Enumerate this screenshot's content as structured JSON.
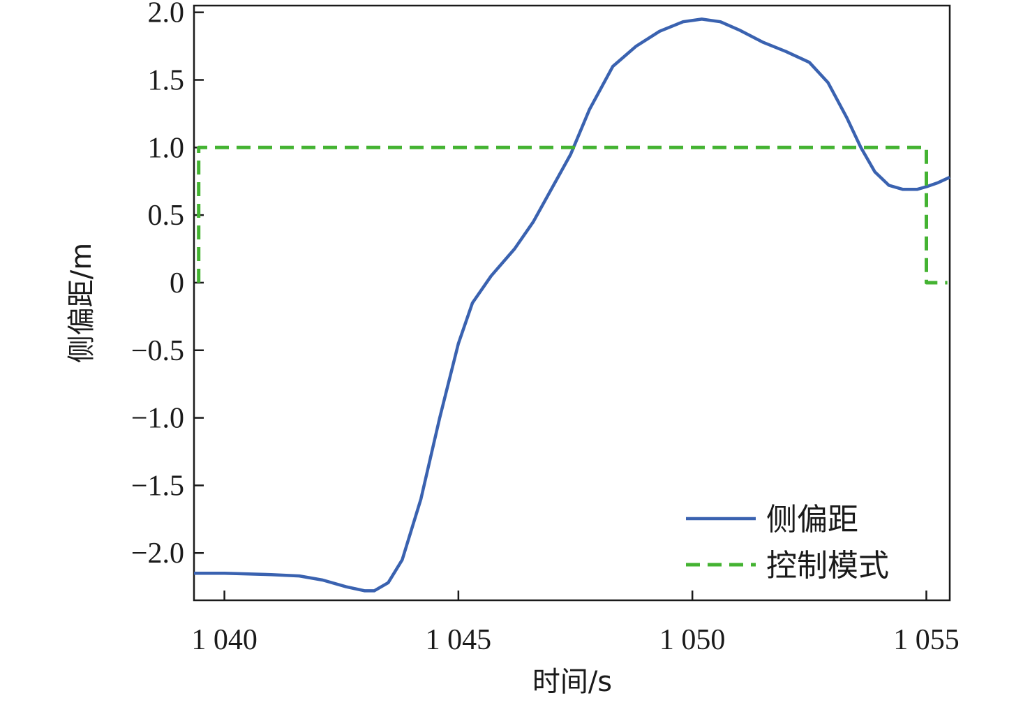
{
  "chart_data": {
    "type": "line",
    "title": "",
    "xlabel": "时间/s",
    "ylabel": "侧偏距/m",
    "xlim": [
      1039.35,
      1055.5
    ],
    "ylim": [
      -2.35,
      2.05
    ],
    "x_ticks": [
      1040,
      1045,
      1050,
      1055
    ],
    "x_tick_labels": [
      "1 040",
      "1 045",
      "1 050",
      "1 055"
    ],
    "y_ticks": [
      2.0,
      1.5,
      1.0,
      0.5,
      0,
      -0.5,
      -1.0,
      -1.5,
      -2.0
    ],
    "y_tick_labels": [
      "2.0",
      "1.5",
      "1.0",
      "0.5",
      "0",
      "−0.5",
      "−1.0",
      "−1.5",
      "−2.0"
    ],
    "grid": false,
    "legend_position": "bottom-right",
    "series": [
      {
        "name": "侧偏距",
        "style": "solid",
        "color": "#3a62b0",
        "x": [
          1039.35,
          1040.0,
          1041.0,
          1041.6,
          1042.1,
          1042.6,
          1043.0,
          1043.2,
          1043.5,
          1043.8,
          1044.2,
          1044.6,
          1045.0,
          1045.3,
          1045.7,
          1046.2,
          1046.6,
          1047.0,
          1047.4,
          1047.8,
          1048.3,
          1048.8,
          1049.3,
          1049.8,
          1050.2,
          1050.6,
          1051.0,
          1051.5,
          1052.0,
          1052.5,
          1052.9,
          1053.3,
          1053.6,
          1053.9,
          1054.2,
          1054.5,
          1054.8,
          1055.0,
          1055.25,
          1055.5
        ],
        "values": [
          -2.15,
          -2.15,
          -2.16,
          -2.17,
          -2.2,
          -2.25,
          -2.28,
          -2.28,
          -2.22,
          -2.05,
          -1.6,
          -1.0,
          -0.45,
          -0.15,
          0.05,
          0.25,
          0.45,
          0.7,
          0.95,
          1.28,
          1.6,
          1.75,
          1.86,
          1.93,
          1.95,
          1.93,
          1.87,
          1.78,
          1.71,
          1.63,
          1.48,
          1.22,
          1.0,
          0.82,
          0.72,
          0.69,
          0.69,
          0.71,
          0.74,
          0.78
        ]
      },
      {
        "name": "控制模式",
        "style": "dashed",
        "color": "#44b332",
        "x": [
          1039.45,
          1039.45,
          1055.0,
          1055.0,
          1055.45
        ],
        "values": [
          0,
          1.0,
          1.0,
          0,
          0
        ]
      }
    ]
  }
}
